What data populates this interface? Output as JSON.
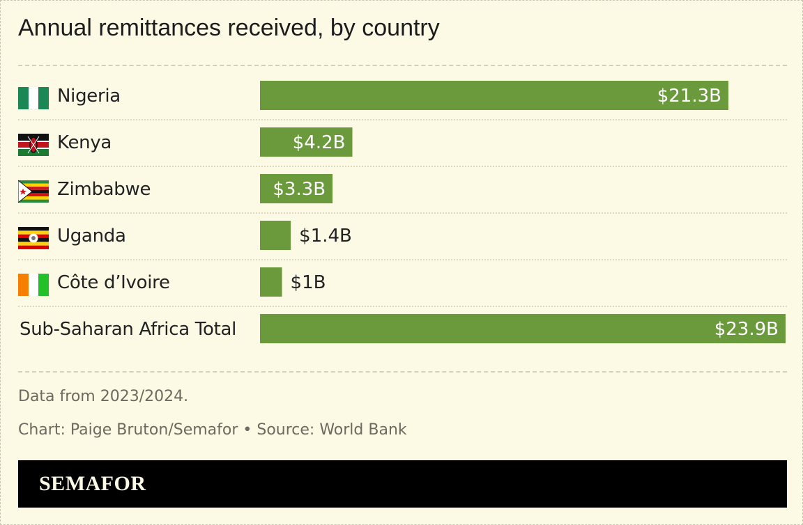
{
  "chart_data": {
    "type": "bar",
    "title": "Annual remittances received, by country",
    "categories": [
      "Nigeria",
      "Kenya",
      "Zimbabwe",
      "Uganda",
      "Côte d’Ivoire",
      "Sub-Saharan Africa Total"
    ],
    "values": [
      21.3,
      4.2,
      3.3,
      1.4,
      1.0,
      23.9
    ],
    "value_labels": [
      "$21.3B",
      "$4.2B",
      "$3.3B",
      "$1.4B",
      "$1B",
      "$23.9B"
    ],
    "unit": "USD billions",
    "orientation": "horizontal",
    "bar_color": "#6b9a3c",
    "grid": false,
    "legend": "none"
  },
  "notes": {
    "data_note": "Data from 2023/2024.",
    "credit": "Chart: Paige Bruton/Semafor • Source: World Bank"
  },
  "brand": {
    "name": "SEMAFOR"
  },
  "flags": [
    "nigeria-flag-icon",
    "kenya-flag-icon",
    "zimbabwe-flag-icon",
    "uganda-flag-icon",
    "cote-divoire-flag-icon"
  ]
}
